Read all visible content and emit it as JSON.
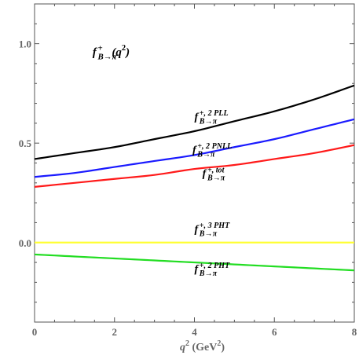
{
  "chart_data": {
    "type": "line",
    "title": "",
    "xlabel": {
      "base": "q",
      "sup": "2",
      "unit_open": " (GeV",
      "unit_sup": "2",
      "unit_close": ")"
    },
    "ylabel": "",
    "xlim": [
      0,
      8
    ],
    "ylim": [
      -0.4,
      1.2
    ],
    "x_ticks": [
      0,
      2,
      4,
      6,
      8
    ],
    "x_tick_labels": [
      "0",
      "2",
      "4",
      "6",
      "8"
    ],
    "y_ticks": [
      0.0,
      0.5,
      1.0
    ],
    "y_tick_labels": [
      "0.0",
      "0.5",
      "1.0"
    ],
    "grid": false,
    "x": [
      0,
      1,
      2,
      3,
      4,
      5,
      6,
      7,
      8
    ],
    "series": [
      {
        "key": "2PLL",
        "color": "#000000",
        "values": [
          0.42,
          0.45,
          0.48,
          0.52,
          0.56,
          0.61,
          0.66,
          0.72,
          0.79
        ]
      },
      {
        "key": "2PNLL",
        "color": "#1a1aff",
        "values": [
          0.33,
          0.35,
          0.38,
          0.41,
          0.44,
          0.48,
          0.52,
          0.57,
          0.62
        ]
      },
      {
        "key": "tot",
        "color": "#ff1a1a",
        "values": [
          0.28,
          0.3,
          0.32,
          0.34,
          0.37,
          0.39,
          0.42,
          0.45,
          0.49
        ]
      },
      {
        "key": "3PHT",
        "color": "#ffff33",
        "values": [
          0.0,
          0.0,
          0.0,
          0.0,
          0.0,
          0.0,
          0.0,
          0.0,
          0.0
        ]
      },
      {
        "key": "2PHT",
        "color": "#22dd22",
        "values": [
          -0.06,
          -0.07,
          -0.08,
          -0.09,
          -0.1,
          -0.11,
          -0.12,
          -0.13,
          -0.14
        ]
      }
    ],
    "annotations": [
      {
        "key": "main",
        "base": "f",
        "sup": "+",
        "sub": "B→π",
        "tail": "(q",
        "tail_sup": "2",
        "tail_close": ")",
        "x": 1.45,
        "y": 0.94,
        "size": 15
      },
      {
        "key": "2PLL",
        "base": "f",
        "sup": "+, 2 PLL",
        "sub": "B→π",
        "x": 4.0,
        "y": 0.615,
        "size": 14
      },
      {
        "key": "2PNLL",
        "base": "f",
        "sup": "+, 2 PNLL",
        "sub": "B→π",
        "x": 3.95,
        "y": 0.45,
        "size": 14
      },
      {
        "key": "tot",
        "base": "f",
        "sup": "+, tot",
        "sub": "B→π",
        "x": 4.2,
        "y": 0.33,
        "size": 14
      },
      {
        "key": "3PHT",
        "base": "f",
        "sup": "+, 3 PHT",
        "sub": "B→π",
        "x": 4.0,
        "y": 0.05,
        "size": 14
      },
      {
        "key": "2PHT",
        "base": "f",
        "sup": "+, 2 PHT",
        "sub": "B→π",
        "x": 4.0,
        "y": -0.15,
        "size": 14
      }
    ]
  }
}
